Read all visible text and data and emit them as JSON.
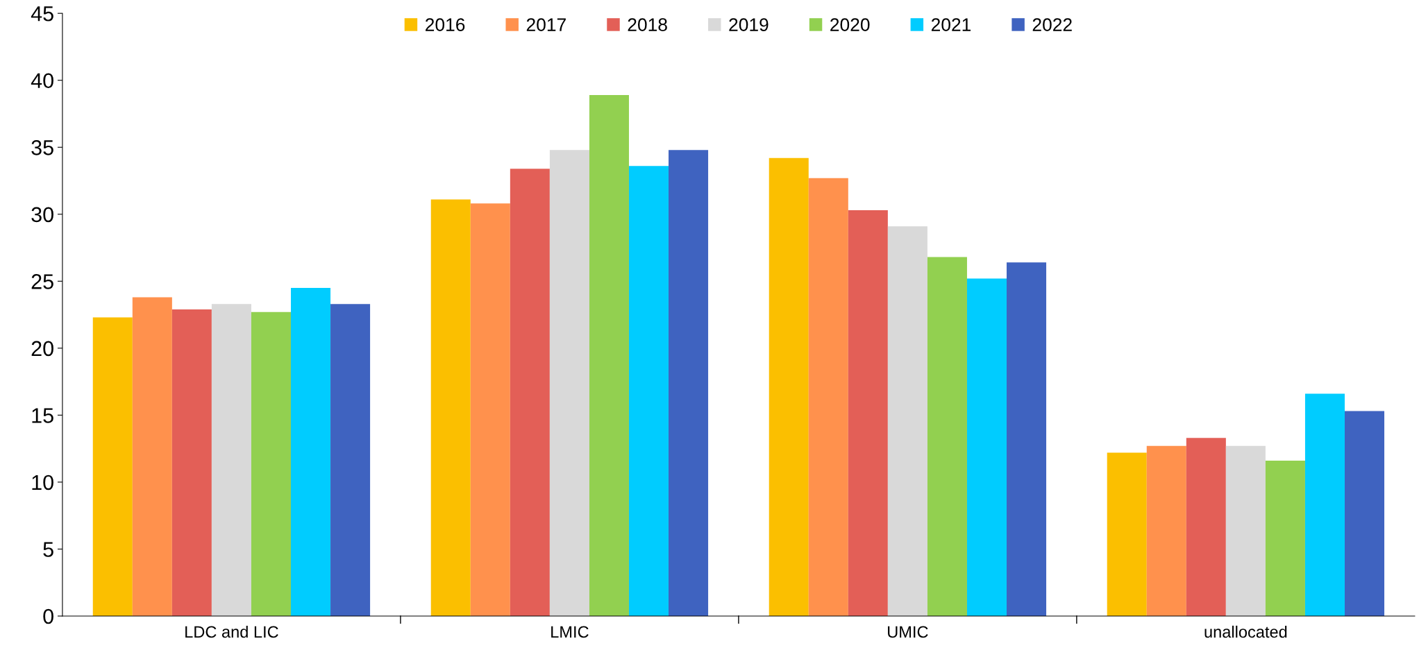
{
  "chart_data": {
    "type": "bar",
    "categories": [
      "LDC and LIC",
      "LMIC",
      "UMIC",
      "unallocated"
    ],
    "series": [
      {
        "name": "2016",
        "color": "#fbbf00",
        "values": [
          22.3,
          31.1,
          34.2,
          12.2
        ]
      },
      {
        "name": "2017",
        "color": "#ff914d",
        "values": [
          23.8,
          30.8,
          32.7,
          12.7
        ]
      },
      {
        "name": "2018",
        "color": "#e35f57",
        "values": [
          22.9,
          33.4,
          30.3,
          13.3
        ]
      },
      {
        "name": "2019",
        "color": "#d9d9d9",
        "values": [
          23.3,
          34.8,
          29.1,
          12.7
        ]
      },
      {
        "name": "2020",
        "color": "#92d050",
        "values": [
          22.7,
          38.9,
          26.8,
          11.6
        ]
      },
      {
        "name": "2021",
        "color": "#00ccff",
        "values": [
          24.5,
          33.6,
          25.2,
          16.6
        ]
      },
      {
        "name": "2022",
        "color": "#3f63c0",
        "values": [
          23.3,
          34.8,
          26.4,
          15.3
        ]
      }
    ],
    "ylim": [
      0,
      45
    ],
    "yticks": [
      0,
      5,
      10,
      15,
      20,
      25,
      30,
      35,
      40,
      45
    ],
    "grid": false,
    "legend": "top"
  }
}
